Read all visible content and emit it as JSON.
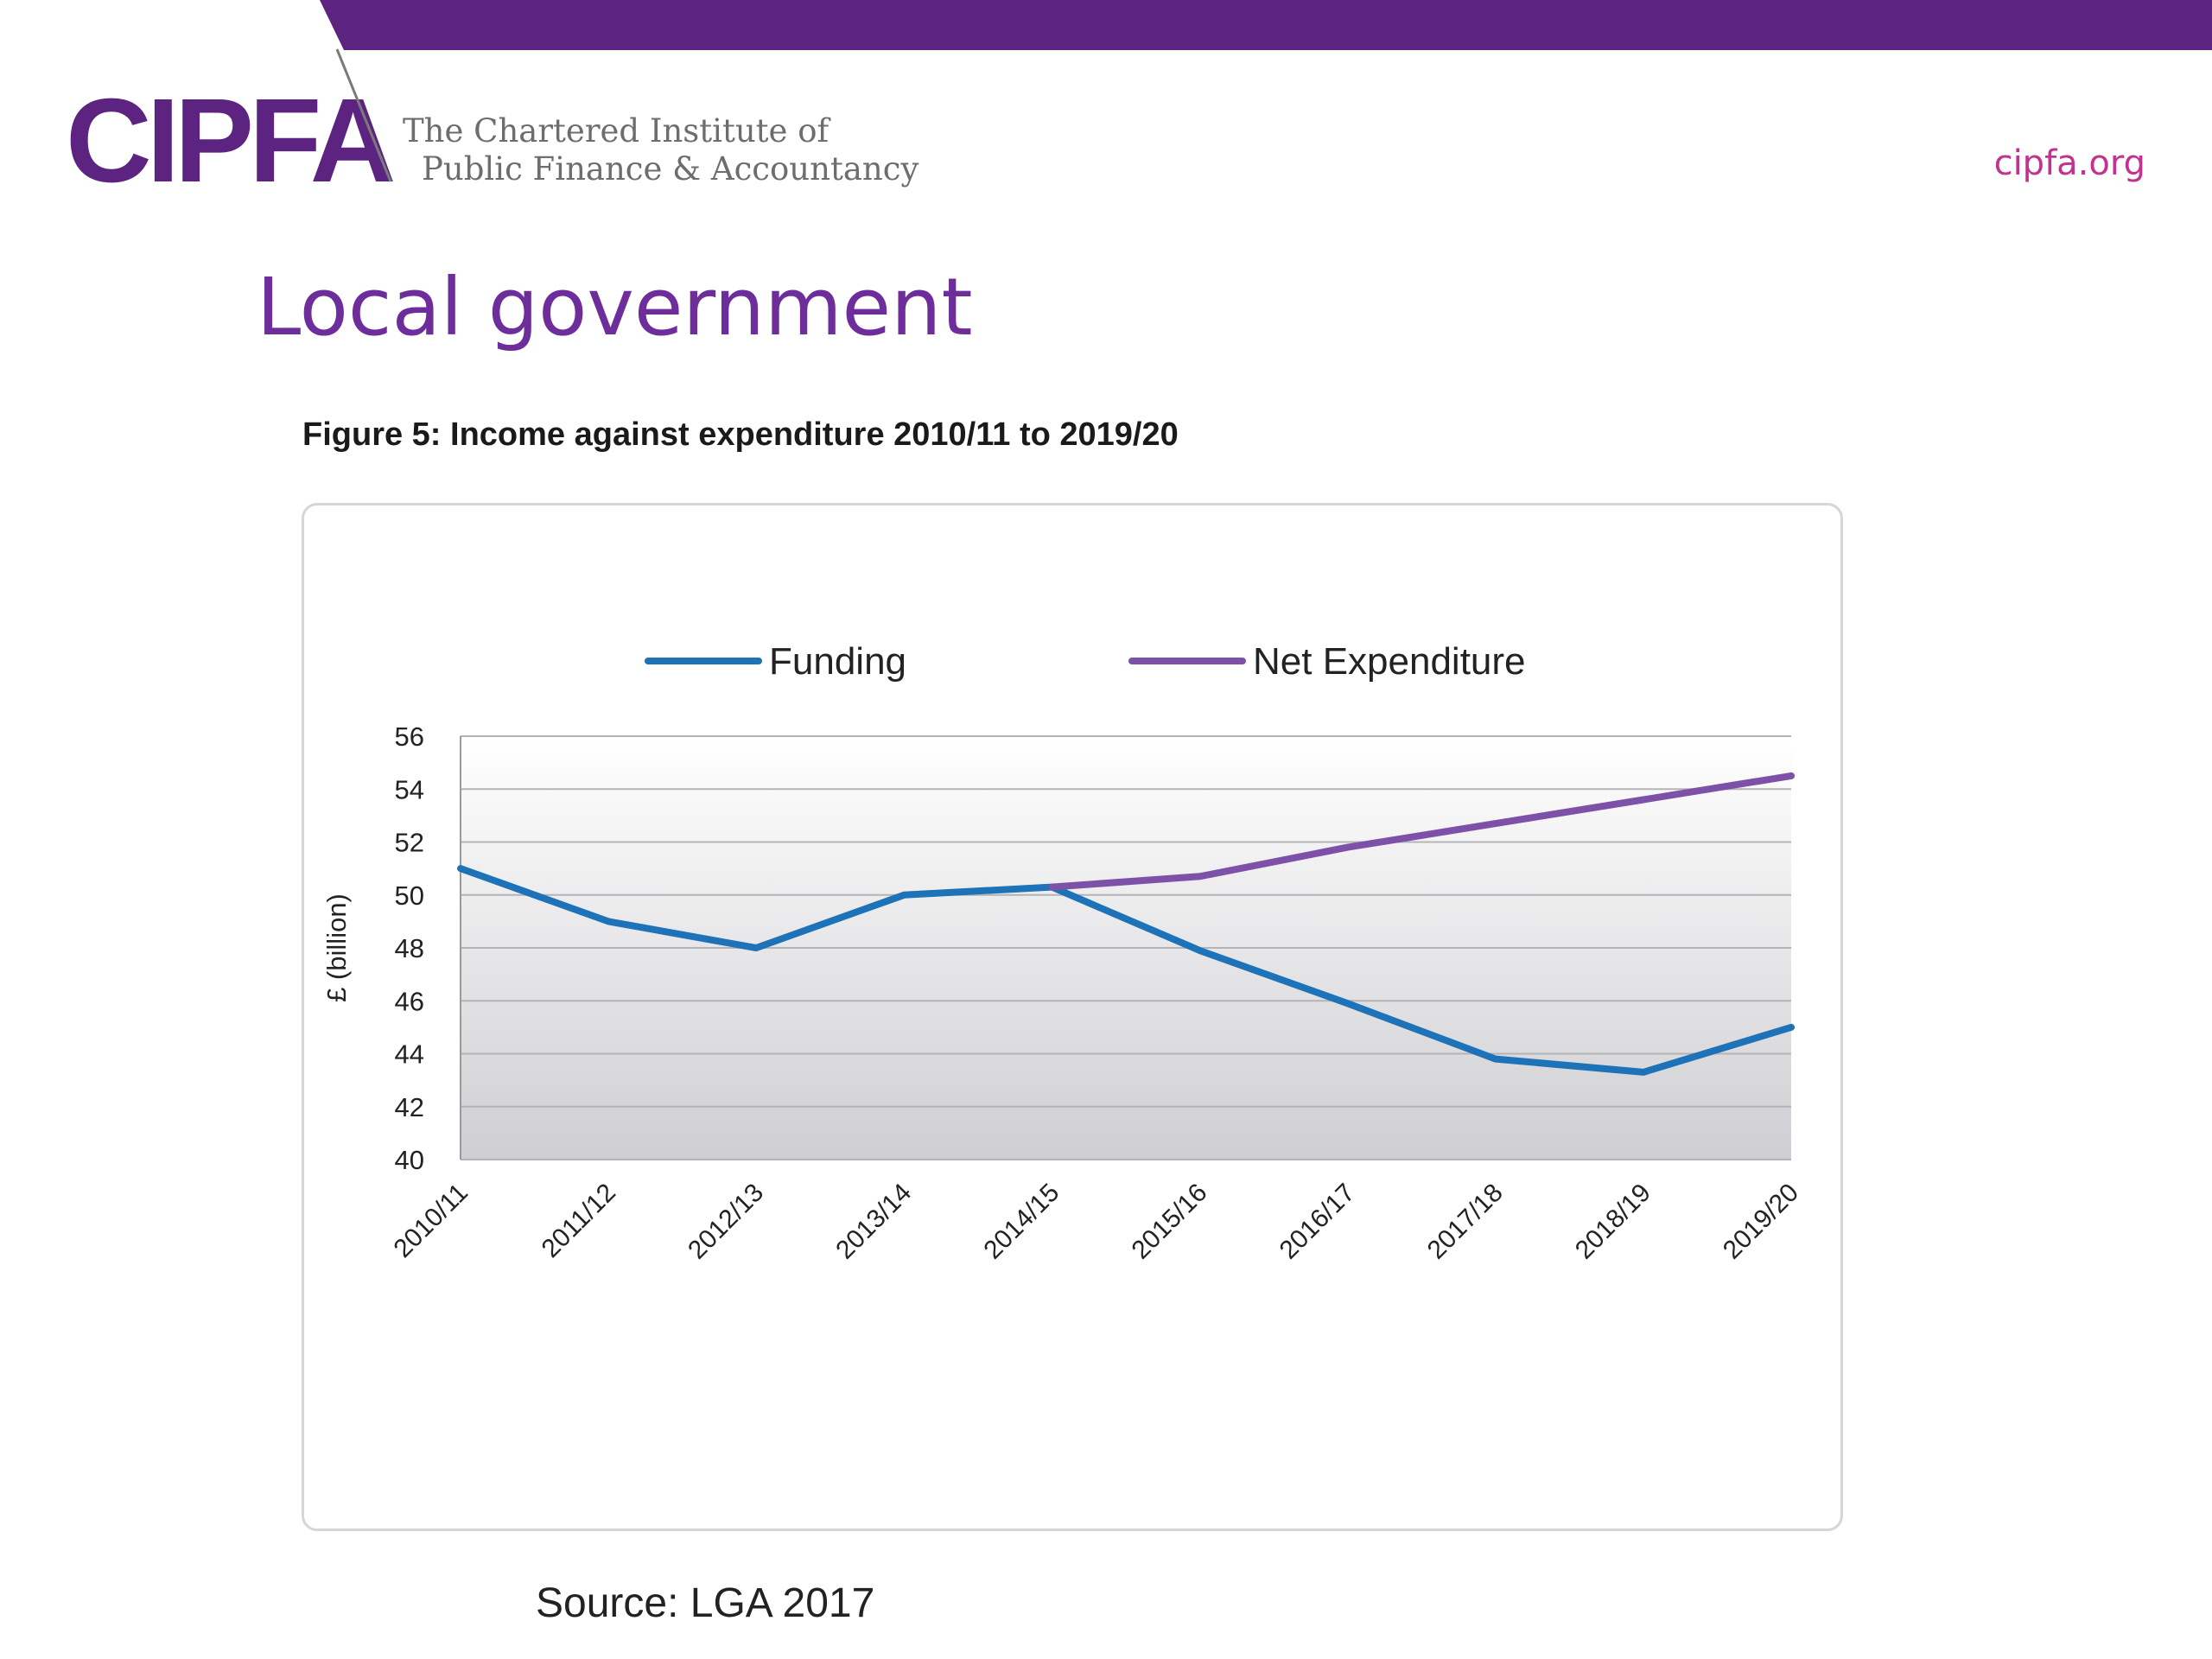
{
  "header": {
    "logo_text": "CIPFA",
    "tagline_line1": "The Chartered Institute of",
    "tagline_line2": "Public Finance & Accountancy",
    "site_link": "cipfa.org"
  },
  "colors": {
    "brand_purple": "#5c2480",
    "link_pink": "#c2338f",
    "funding_line": "#1e72b8",
    "expenditure_line": "#7e51a8"
  },
  "slide": {
    "title": "Local government",
    "figure_caption": "Figure 5: Income against expenditure 2010/11 to 2019/20",
    "source": "Source: LGA 2017"
  },
  "chart_data": {
    "type": "line",
    "title": "",
    "xlabel": "",
    "ylabel": "£ (billion)",
    "ylim": [
      40,
      56
    ],
    "yticks": [
      40,
      42,
      44,
      46,
      48,
      50,
      52,
      54,
      56
    ],
    "grid": true,
    "legend_position": "top",
    "categories": [
      "2010/11",
      "2011/12",
      "2012/13",
      "2013/14",
      "2014/15",
      "2015/16",
      "2016/17",
      "2017/18",
      "2018/19",
      "2019/20"
    ],
    "series": [
      {
        "name": "Funding",
        "color": "#1e72b8",
        "values": [
          51.0,
          49.0,
          48.0,
          50.0,
          50.3,
          47.9,
          45.9,
          43.8,
          43.3,
          45.0
        ]
      },
      {
        "name": "Net Expenditure",
        "color": "#7e51a8",
        "values": [
          null,
          null,
          null,
          null,
          50.3,
          50.7,
          51.8,
          52.7,
          53.6,
          54.5
        ]
      }
    ]
  }
}
